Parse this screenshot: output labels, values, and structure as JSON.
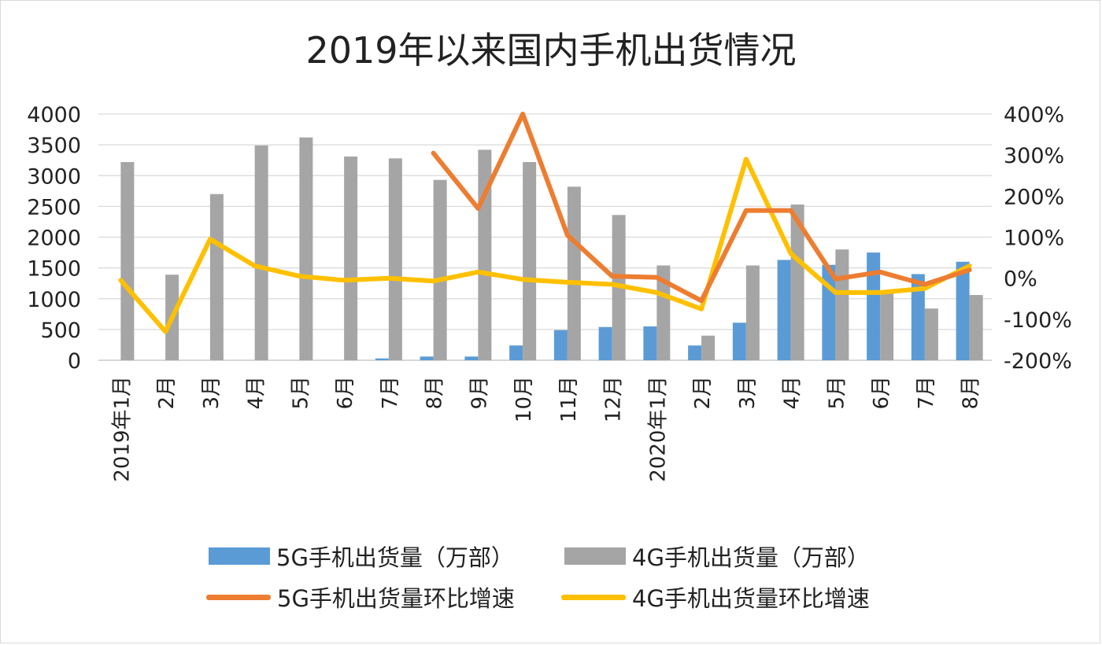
{
  "chart_data": {
    "type": "bar",
    "title": "2019年以来国内手机出货情况",
    "categories": [
      "2019年1月",
      "2月",
      "3月",
      "4月",
      "5月",
      "6月",
      "7月",
      "8月",
      "9月",
      "10月",
      "11月",
      "12月",
      "2020年1月",
      "2月",
      "3月",
      "4月",
      "5月",
      "6月",
      "7月",
      "8月"
    ],
    "left_axis": {
      "min": 0,
      "max": 4000,
      "ticks": [
        0,
        500,
        1000,
        1500,
        2000,
        2500,
        3000,
        3500,
        4000
      ]
    },
    "right_axis": {
      "min": -200,
      "max": 400,
      "ticks": [
        "-200%",
        "-100%",
        "0%",
        "100%",
        "200%",
        "300%",
        "400%"
      ]
    },
    "series": [
      {
        "name": "5G手机出货量（万部）",
        "type": "bar",
        "axis": "left",
        "color": "#5B9BD5",
        "values": [
          0,
          0,
          0,
          0,
          0,
          0,
          30,
          60,
          60,
          240,
          490,
          540,
          550,
          240,
          610,
          1630,
          1550,
          1750,
          1400,
          1600
        ]
      },
      {
        "name": "4G手机出货量（万部）",
        "type": "bar",
        "axis": "left",
        "color": "#A5A5A5",
        "values": [
          3220,
          1390,
          2700,
          3490,
          3620,
          3310,
          3280,
          2930,
          3420,
          3220,
          2820,
          2360,
          1540,
          400,
          1540,
          2530,
          1800,
          1100,
          840,
          1060
        ]
      },
      {
        "name": "5G手机出货量环比增速",
        "type": "line",
        "axis": "right",
        "color": "#ED7D31",
        "values": [
          null,
          null,
          null,
          null,
          null,
          null,
          null,
          305,
          170,
          400,
          105,
          5,
          2,
          -55,
          165,
          165,
          -2,
          15,
          -15,
          20
        ]
      },
      {
        "name": "4G手机出货量环比增速",
        "type": "line",
        "axis": "right",
        "color": "#FFC000",
        "values": [
          -5,
          -130,
          95,
          30,
          5,
          -5,
          0,
          -7,
          15,
          -3,
          -10,
          -15,
          -35,
          -75,
          290,
          60,
          -35,
          -35,
          -25,
          30
        ]
      }
    ],
    "grid": true,
    "legend": "bottom"
  }
}
